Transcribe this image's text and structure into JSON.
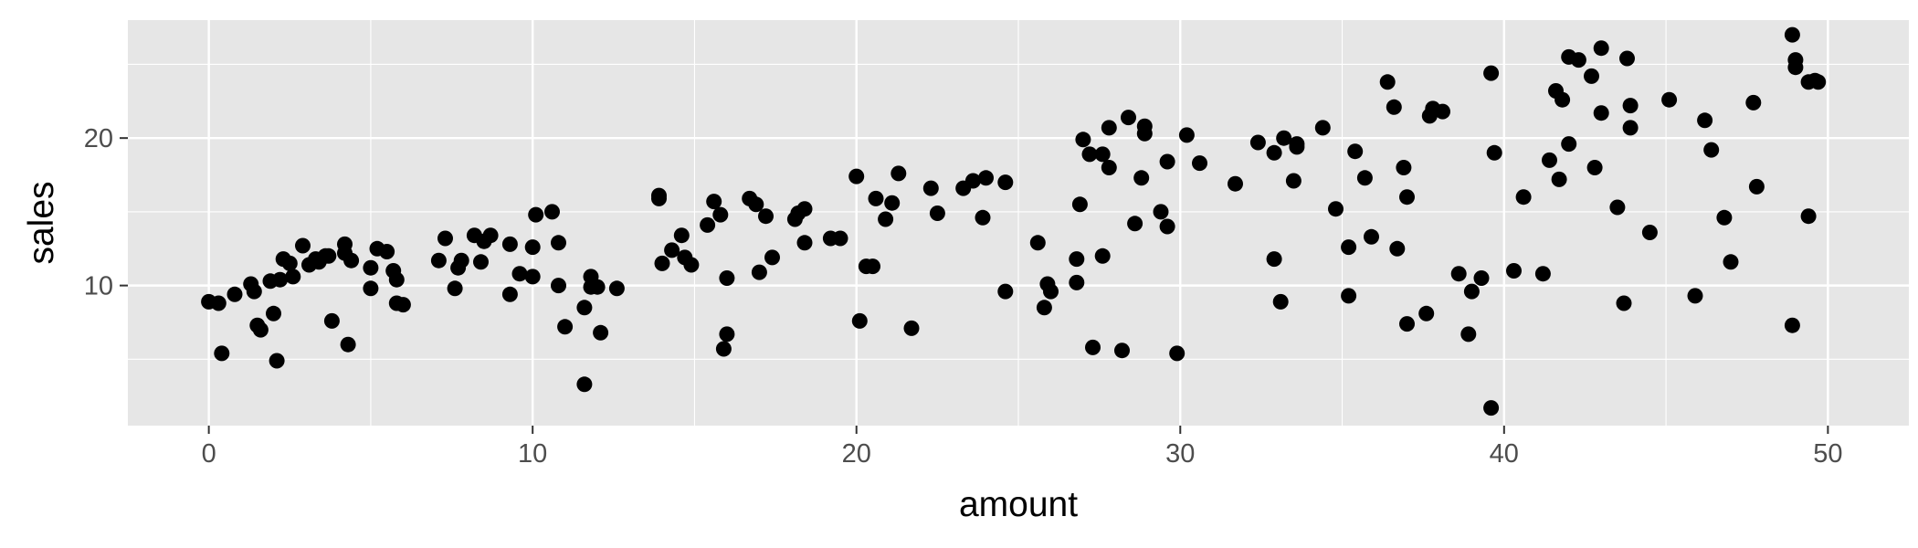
{
  "chart_data": {
    "type": "scatter",
    "xlabel": "amount",
    "ylabel": "sales",
    "xlim": [
      -2.5,
      52.5
    ],
    "ylim": [
      0.5,
      28.0
    ],
    "x_ticks": [
      0,
      10,
      20,
      30,
      40,
      50
    ],
    "y_ticks": [
      10,
      20
    ],
    "x_tick_labels": [
      "0",
      "10",
      "20",
      "30",
      "40",
      "50"
    ],
    "y_tick_labels": [
      "10",
      "20"
    ],
    "grid": true,
    "background": "#E6E6E6",
    "grid_color": "#FFFFFF",
    "point_color": "#000000",
    "points": [
      [
        0.0,
        8.9
      ],
      [
        0.3,
        8.8
      ],
      [
        0.4,
        5.4
      ],
      [
        0.8,
        9.4
      ],
      [
        1.3,
        10.1
      ],
      [
        1.4,
        9.6
      ],
      [
        1.5,
        7.3
      ],
      [
        1.6,
        7.0
      ],
      [
        1.9,
        10.3
      ],
      [
        2.0,
        8.1
      ],
      [
        2.1,
        4.9
      ],
      [
        2.2,
        10.4
      ],
      [
        2.3,
        11.8
      ],
      [
        2.5,
        11.5
      ],
      [
        2.6,
        10.6
      ],
      [
        2.9,
        12.7
      ],
      [
        3.1,
        11.4
      ],
      [
        3.3,
        11.8
      ],
      [
        3.4,
        11.6
      ],
      [
        3.6,
        12.0
      ],
      [
        3.7,
        12.0
      ],
      [
        3.8,
        7.6
      ],
      [
        4.2,
        12.8
      ],
      [
        4.2,
        12.2
      ],
      [
        4.3,
        6.0
      ],
      [
        4.4,
        11.7
      ],
      [
        5.0,
        9.8
      ],
      [
        5.0,
        11.2
      ],
      [
        5.2,
        12.5
      ],
      [
        5.5,
        12.3
      ],
      [
        5.7,
        11.0
      ],
      [
        5.8,
        10.4
      ],
      [
        5.8,
        8.8
      ],
      [
        6.0,
        8.7
      ],
      [
        7.1,
        11.7
      ],
      [
        7.3,
        13.2
      ],
      [
        7.6,
        9.8
      ],
      [
        7.7,
        11.2
      ],
      [
        7.8,
        11.7
      ],
      [
        8.2,
        13.4
      ],
      [
        8.4,
        11.6
      ],
      [
        8.5,
        13.0
      ],
      [
        8.7,
        13.4
      ],
      [
        9.3,
        12.8
      ],
      [
        9.3,
        9.4
      ],
      [
        9.6,
        10.8
      ],
      [
        10.0,
        12.6
      ],
      [
        10.0,
        10.6
      ],
      [
        10.1,
        14.8
      ],
      [
        10.6,
        15.0
      ],
      [
        10.8,
        12.9
      ],
      [
        10.8,
        10.0
      ],
      [
        11.0,
        7.2
      ],
      [
        11.6,
        8.5
      ],
      [
        11.6,
        3.3
      ],
      [
        11.8,
        9.9
      ],
      [
        11.8,
        10.6
      ],
      [
        12.0,
        9.9
      ],
      [
        12.1,
        6.8
      ],
      [
        12.6,
        9.8
      ],
      [
        13.9,
        16.1
      ],
      [
        13.9,
        15.9
      ],
      [
        14.0,
        11.5
      ],
      [
        14.3,
        12.4
      ],
      [
        14.6,
        13.4
      ],
      [
        14.7,
        11.9
      ],
      [
        14.9,
        11.4
      ],
      [
        15.4,
        14.1
      ],
      [
        15.6,
        15.7
      ],
      [
        15.8,
        14.8
      ],
      [
        15.9,
        5.7
      ],
      [
        16.0,
        10.5
      ],
      [
        16.0,
        6.7
      ],
      [
        16.7,
        15.9
      ],
      [
        16.9,
        15.5
      ],
      [
        17.0,
        10.9
      ],
      [
        17.2,
        14.7
      ],
      [
        17.4,
        11.9
      ],
      [
        18.1,
        14.5
      ],
      [
        18.2,
        14.9
      ],
      [
        18.4,
        12.9
      ],
      [
        18.4,
        15.2
      ],
      [
        19.2,
        13.2
      ],
      [
        19.5,
        13.2
      ],
      [
        20.0,
        17.4
      ],
      [
        20.1,
        7.6
      ],
      [
        20.3,
        11.3
      ],
      [
        20.5,
        11.3
      ],
      [
        20.6,
        15.9
      ],
      [
        20.9,
        14.5
      ],
      [
        21.1,
        15.6
      ],
      [
        21.3,
        17.6
      ],
      [
        21.7,
        7.1
      ],
      [
        22.3,
        16.6
      ],
      [
        22.5,
        14.9
      ],
      [
        23.3,
        16.6
      ],
      [
        23.6,
        17.1
      ],
      [
        23.9,
        14.6
      ],
      [
        24.0,
        17.3
      ],
      [
        24.6,
        9.6
      ],
      [
        24.6,
        17.0
      ],
      [
        25.6,
        12.9
      ],
      [
        25.8,
        8.5
      ],
      [
        25.9,
        10.1
      ],
      [
        26.0,
        9.6
      ],
      [
        26.8,
        10.2
      ],
      [
        26.8,
        11.8
      ],
      [
        26.9,
        15.5
      ],
      [
        27.0,
        19.9
      ],
      [
        27.2,
        18.9
      ],
      [
        27.3,
        5.8
      ],
      [
        27.6,
        12.0
      ],
      [
        27.6,
        18.9
      ],
      [
        27.8,
        20.7
      ],
      [
        27.8,
        18.0
      ],
      [
        28.2,
        5.6
      ],
      [
        28.4,
        21.4
      ],
      [
        28.6,
        14.2
      ],
      [
        28.8,
        17.3
      ],
      [
        28.9,
        20.3
      ],
      [
        28.9,
        20.8
      ],
      [
        29.4,
        15.0
      ],
      [
        29.6,
        18.4
      ],
      [
        29.6,
        14.0
      ],
      [
        29.9,
        5.4
      ],
      [
        30.2,
        20.2
      ],
      [
        30.6,
        18.3
      ],
      [
        31.7,
        16.9
      ],
      [
        32.4,
        19.7
      ],
      [
        32.9,
        11.8
      ],
      [
        32.9,
        19.0
      ],
      [
        33.1,
        8.9
      ],
      [
        33.2,
        20.0
      ],
      [
        33.5,
        17.1
      ],
      [
        33.6,
        19.4
      ],
      [
        33.6,
        19.6
      ],
      [
        34.4,
        20.7
      ],
      [
        34.8,
        15.2
      ],
      [
        35.2,
        12.6
      ],
      [
        35.2,
        9.3
      ],
      [
        35.4,
        19.1
      ],
      [
        35.7,
        17.3
      ],
      [
        35.9,
        13.3
      ],
      [
        36.4,
        23.8
      ],
      [
        36.6,
        22.1
      ],
      [
        36.7,
        12.5
      ],
      [
        36.9,
        18.0
      ],
      [
        37.0,
        16.0
      ],
      [
        37.0,
        7.4
      ],
      [
        37.6,
        8.1
      ],
      [
        37.7,
        21.5
      ],
      [
        37.8,
        22.0
      ],
      [
        38.1,
        21.8
      ],
      [
        38.6,
        10.8
      ],
      [
        38.9,
        6.7
      ],
      [
        39.0,
        9.6
      ],
      [
        39.3,
        10.5
      ],
      [
        39.6,
        1.7
      ],
      [
        39.6,
        24.4
      ],
      [
        39.7,
        19.0
      ],
      [
        40.3,
        11.0
      ],
      [
        40.6,
        16.0
      ],
      [
        41.2,
        10.8
      ],
      [
        41.4,
        18.5
      ],
      [
        41.6,
        23.2
      ],
      [
        41.7,
        17.2
      ],
      [
        41.8,
        22.6
      ],
      [
        42.0,
        19.6
      ],
      [
        42.0,
        25.5
      ],
      [
        42.3,
        25.3
      ],
      [
        42.7,
        24.2
      ],
      [
        42.8,
        18.0
      ],
      [
        43.0,
        26.1
      ],
      [
        43.0,
        21.7
      ],
      [
        43.5,
        15.3
      ],
      [
        43.7,
        8.8
      ],
      [
        43.8,
        25.4
      ],
      [
        43.9,
        20.7
      ],
      [
        43.9,
        22.2
      ],
      [
        44.5,
        13.6
      ],
      [
        45.1,
        22.6
      ],
      [
        45.9,
        9.3
      ],
      [
        46.2,
        21.2
      ],
      [
        46.4,
        19.2
      ],
      [
        46.8,
        14.6
      ],
      [
        47.0,
        11.6
      ],
      [
        47.7,
        22.4
      ],
      [
        47.8,
        16.7
      ],
      [
        48.9,
        27.0
      ],
      [
        48.9,
        7.3
      ],
      [
        49.0,
        25.3
      ],
      [
        49.0,
        24.8
      ],
      [
        49.4,
        23.8
      ],
      [
        49.4,
        14.7
      ],
      [
        49.6,
        23.9
      ],
      [
        49.7,
        23.8
      ]
    ]
  }
}
